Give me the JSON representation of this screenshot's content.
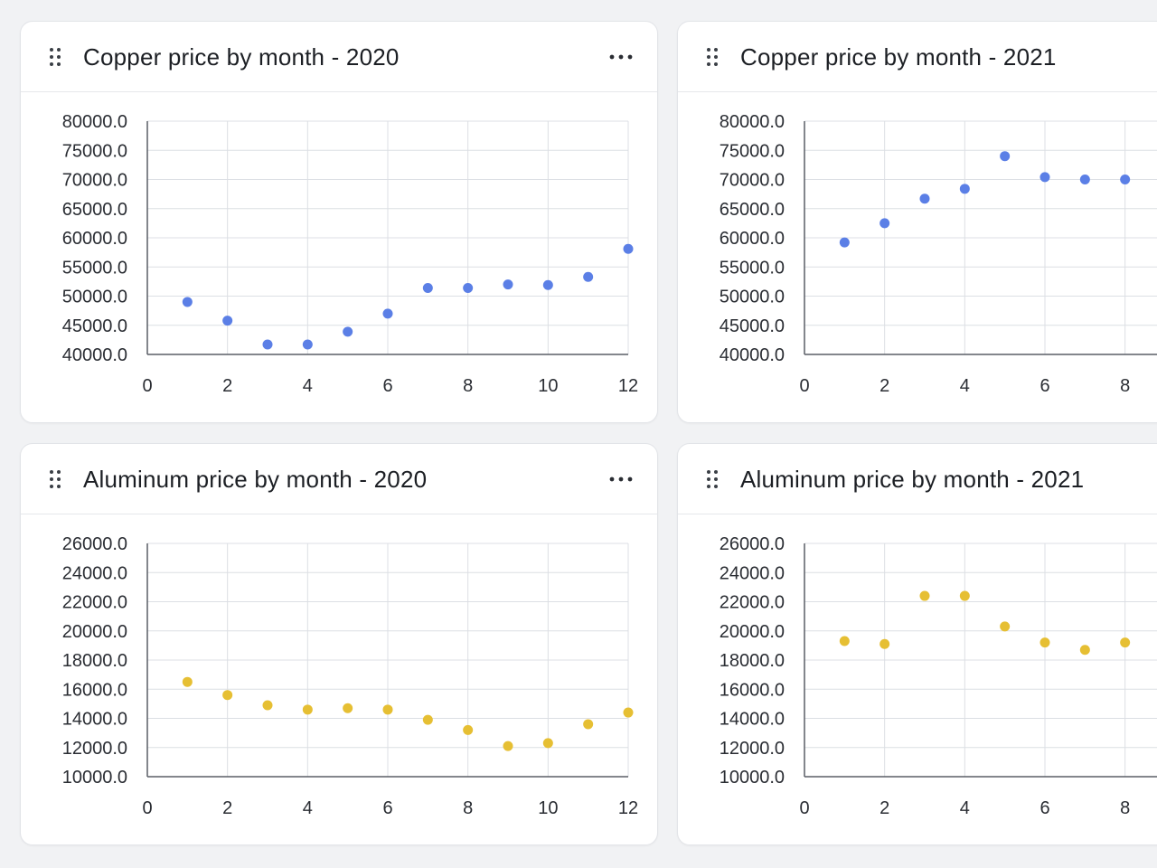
{
  "colors": {
    "copper_series": "#5b7fe6",
    "aluminum_series": "#e6bf33",
    "grid": "#dcdfe4",
    "axis": "#5a5f66"
  },
  "menu_icon": "ellipsis-icon",
  "drag_icon": "drag-handle-icon",
  "charts": [
    {
      "key": "copper-2020",
      "title": "Copper price by month - 2020",
      "has_menu": true,
      "chart_data": {
        "type": "scatter",
        "color": "#5b7fe6",
        "xlim": [
          0,
          12
        ],
        "ylim": [
          40000,
          80000
        ],
        "x_ticks": [
          0,
          2,
          4,
          6,
          8,
          10,
          12
        ],
        "x_tick_labels": [
          "0",
          "2",
          "4",
          "6",
          "8",
          "10",
          "12"
        ],
        "y_ticks": [
          40000,
          45000,
          50000,
          55000,
          60000,
          65000,
          70000,
          75000,
          80000
        ],
        "y_tick_labels": [
          "40000.0",
          "45000.0",
          "50000.0",
          "55000.0",
          "60000.0",
          "65000.0",
          "70000.0",
          "75000.0",
          "80000.0"
        ],
        "grid": true,
        "x": [
          1,
          2,
          3,
          4,
          5,
          6,
          7,
          8,
          9,
          10,
          11,
          12
        ],
        "y": [
          49000,
          45800,
          41700,
          41700,
          43900,
          47000,
          51400,
          51400,
          52000,
          51900,
          53300,
          58100
        ]
      }
    },
    {
      "key": "copper-2021",
      "title": "Copper price by month - 2021",
      "has_menu": false,
      "chart_data": {
        "type": "scatter",
        "color": "#5b7fe6",
        "xlim": [
          0,
          12
        ],
        "ylim": [
          40000,
          80000
        ],
        "x_ticks": [
          0,
          2,
          4,
          6,
          8
        ],
        "x_tick_labels": [
          "0",
          "2",
          "4",
          "6",
          "8"
        ],
        "y_ticks": [
          40000,
          45000,
          50000,
          55000,
          60000,
          65000,
          70000,
          75000,
          80000
        ],
        "y_tick_labels": [
          "40000.0",
          "45000.0",
          "50000.0",
          "55000.0",
          "60000.0",
          "65000.0",
          "70000.0",
          "75000.0",
          "80000.0"
        ],
        "grid": true,
        "x": [
          1,
          2,
          3,
          4,
          5,
          6,
          7,
          8
        ],
        "y": [
          59200,
          62500,
          66700,
          68400,
          74000,
          70400,
          70000,
          70000
        ]
      }
    },
    {
      "key": "aluminum-2020",
      "title": "Aluminum price by month - 2020",
      "has_menu": true,
      "chart_data": {
        "type": "scatter",
        "color": "#e6bf33",
        "xlim": [
          0,
          12
        ],
        "ylim": [
          10000,
          26000
        ],
        "x_ticks": [
          0,
          2,
          4,
          6,
          8,
          10,
          12
        ],
        "x_tick_labels": [
          "0",
          "2",
          "4",
          "6",
          "8",
          "10",
          "12"
        ],
        "y_ticks": [
          10000,
          12000,
          14000,
          16000,
          18000,
          20000,
          22000,
          24000,
          26000
        ],
        "y_tick_labels": [
          "10000.0",
          "12000.0",
          "14000.0",
          "16000.0",
          "18000.0",
          "20000.0",
          "22000.0",
          "24000.0",
          "26000.0"
        ],
        "grid": true,
        "x": [
          1,
          2,
          3,
          4,
          5,
          6,
          7,
          8,
          9,
          10,
          11,
          12
        ],
        "y": [
          16500,
          15600,
          14900,
          14600,
          14700,
          14600,
          13900,
          13200,
          12100,
          12300,
          13600,
          14400
        ]
      }
    },
    {
      "key": "aluminum-2021",
      "title": "Aluminum price by month - 2021",
      "has_menu": false,
      "chart_data": {
        "type": "scatter",
        "color": "#e6bf33",
        "xlim": [
          0,
          12
        ],
        "ylim": [
          10000,
          26000
        ],
        "x_ticks": [
          0,
          2,
          4,
          6,
          8
        ],
        "x_tick_labels": [
          "0",
          "2",
          "4",
          "6",
          "8"
        ],
        "y_ticks": [
          10000,
          12000,
          14000,
          16000,
          18000,
          20000,
          22000,
          24000,
          26000
        ],
        "y_tick_labels": [
          "10000.0",
          "12000.0",
          "14000.0",
          "16000.0",
          "18000.0",
          "20000.0",
          "22000.0",
          "24000.0",
          "26000.0"
        ],
        "grid": true,
        "x": [
          1,
          2,
          3,
          4,
          5,
          6,
          7,
          8
        ],
        "y": [
          19300,
          19100,
          22400,
          22400,
          20300,
          19200,
          18700,
          19200
        ]
      }
    }
  ]
}
